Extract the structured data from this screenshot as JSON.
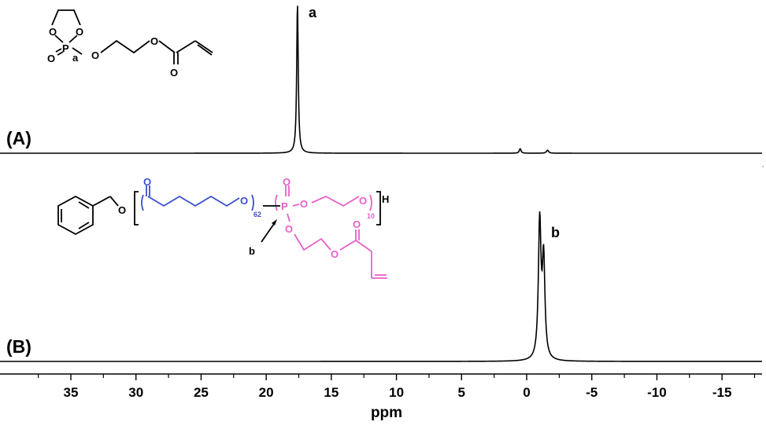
{
  "chart_data": {
    "type": "line",
    "xlabel": "ppm",
    "x_reversed": true,
    "xlim": [
      39,
      -18
    ],
    "x_ticks": [
      "35",
      "30",
      "25",
      "20",
      "15",
      "10",
      "5",
      "0",
      "-5",
      "-10",
      "-15"
    ],
    "x_tick_values": [
      35,
      30,
      25,
      20,
      15,
      10,
      5,
      0,
      -5,
      -10,
      -15
    ],
    "grid": false,
    "panels": [
      {
        "panel_label": "(A)",
        "peak_label": "a",
        "peaks": [
          {
            "ppm": 17.6,
            "intensity": 1.0,
            "width": 0.07
          },
          {
            "ppm": 0.5,
            "intensity": 0.03,
            "width": 0.08
          },
          {
            "ppm": -1.6,
            "intensity": 0.02,
            "width": 0.1
          }
        ],
        "structure_atoms": {
          "o1": "O",
          "o2": "O",
          "p": "P",
          "o_double": "O",
          "o_ester": "O",
          "o_bridge": "O",
          "o_carbonyl": "O",
          "site_label": "a"
        }
      },
      {
        "panel_label": "(B)",
        "peak_label": "b",
        "peaks": [
          {
            "ppm": -1.0,
            "intensity": 1.0,
            "width": 0.12
          },
          {
            "ppm": -1.3,
            "intensity": 0.72,
            "width": 0.12
          }
        ],
        "structure_atoms": {
          "o_benzyl": "O",
          "o_pcl_carbonyl": "O",
          "o_pcl_end": "O",
          "pcl_repeat": "62",
          "p": "P",
          "o_p_double": "O",
          "o_peg_start": "O",
          "o_peg_end": "O",
          "peg_repeat": "10",
          "h_end": "H",
          "o_side": "O",
          "o_side_ester": "O",
          "o_side_carbonyl": "O",
          "site_label": "b"
        }
      }
    ],
    "colors": {
      "pcl_segment": "#3a4fd0",
      "phosphoester_segment": "#e860c8",
      "trace": "#000000"
    }
  }
}
